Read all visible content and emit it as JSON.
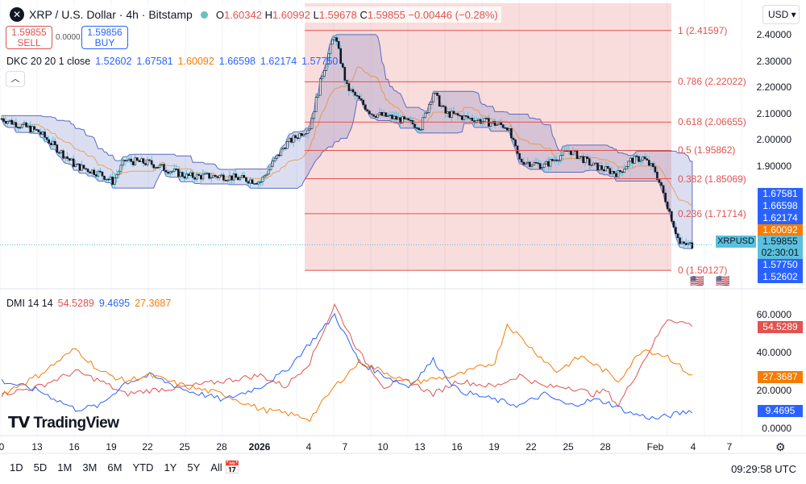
{
  "header": {
    "title": "XRP / U.S. Dollar · 4h · Bitstamp",
    "open_label": "O",
    "open": "1.60342",
    "high_label": "H",
    "high": "1.60992",
    "low_label": "L",
    "low": "1.59678",
    "close_label": "C",
    "close": "1.59855",
    "change": "−0.00446 (−0.28%)"
  },
  "trade": {
    "sell_price": "1.59855",
    "sell_label": "SELL",
    "spread": "0.00001",
    "buy_price": "1.59856",
    "buy_label": "BUY"
  },
  "currency": "USD",
  "dkc": {
    "name": "DKC 20 20 1 close",
    "v1": "1.52602",
    "v2": "1.67581",
    "v3": "1.60092",
    "v4": "1.66598",
    "v5": "1.62174",
    "v6": "1.57750"
  },
  "dmi": {
    "name": "DMI 14 14",
    "minus_di": "54.5289",
    "plus_di": "9.4695",
    "adx": "27.3687"
  },
  "price_axis": [
    "2.40000",
    "2.30000",
    "2.20000",
    "2.10000",
    "2.00000",
    "1.90000"
  ],
  "price_labels": {
    "l1": "1.67581",
    "l2": "1.66598",
    "l3": "1.62174",
    "mid": "1.60092",
    "symbol": "XRPUSD",
    "last": "1.59855",
    "countdown": "02:30:01",
    "l4": "1.57750",
    "l5": "1.52602"
  },
  "fib": [
    {
      "label": "1 (2.41597)",
      "p": 2.41597
    },
    {
      "label": "0.786 (2.22022)",
      "p": 2.22022
    },
    {
      "label": "0.618 (2.06655)",
      "p": 2.06655
    },
    {
      "label": "0.5 (1.95862)",
      "p": 1.95862
    },
    {
      "label": "0.382 (1.85069)",
      "p": 1.85069
    },
    {
      "label": "0.236 (1.71714)",
      "p": 1.71714
    },
    {
      "label": "0 (1.50127)",
      "p": 1.50127
    }
  ],
  "dmi_axis": [
    "60.0000",
    "40.0000",
    "20.0000",
    "0.0000"
  ],
  "dmi_labels": {
    "minus_di": "54.5289",
    "adx": "27.3687",
    "plus_di": "9.4695"
  },
  "x_ticks": [
    "0",
    "13",
    "16",
    "19",
    "22",
    "25",
    "28",
    "2026",
    "4",
    "7",
    "10",
    "13",
    "16",
    "19",
    "22",
    "25",
    "28",
    "Feb",
    "4",
    "7"
  ],
  "brand": "TradingView",
  "ranges": [
    "1D",
    "5D",
    "1M",
    "3M",
    "6M",
    "YTD",
    "1Y",
    "5Y",
    "All"
  ],
  "clock": "09:29:58 UTC",
  "colors": {
    "up": "#131722",
    "down": "#131722",
    "wick": "#5bc0de",
    "band": "#5c6bc0",
    "fib": "#e0534f",
    "plus_di": "#2962ff",
    "minus_di": "#e0534f",
    "adx": "#f57c00",
    "accent": "#2962ff"
  },
  "chart_data": {
    "type": "line",
    "price_close": {
      "days": [
        0,
        3,
        6,
        8,
        9,
        10,
        12,
        15,
        18,
        21,
        23,
        25,
        26,
        27,
        28,
        30,
        32,
        34,
        35,
        36,
        38,
        41,
        42,
        44,
        46,
        47,
        48,
        50,
        51,
        52,
        53,
        54,
        55,
        56
      ],
      "values": [
        2.08,
        2.03,
        1.9,
        1.87,
        1.84,
        1.92,
        1.91,
        1.86,
        1.86,
        1.84,
        1.98,
        2.05,
        2.25,
        2.4,
        2.2,
        2.1,
        2.08,
        2.05,
        2.18,
        2.1,
        2.08,
        2.05,
        1.92,
        1.9,
        1.96,
        1.93,
        1.9,
        1.87,
        1.92,
        1.93,
        1.88,
        1.75,
        1.6,
        1.59855
      ]
    },
    "dmi": [
      {
        "name": "-DI",
        "days": [
          0,
          3,
          6,
          8,
          10,
          12,
          15,
          18,
          21,
          23,
          25,
          27,
          29,
          31,
          33,
          35,
          37,
          40,
          42,
          44,
          46,
          48,
          49,
          50,
          52,
          54,
          56
        ],
        "values": [
          18,
          22,
          30,
          25,
          18,
          20,
          22,
          25,
          28,
          22,
          35,
          65,
          40,
          22,
          25,
          18,
          25,
          22,
          28,
          22,
          22,
          18,
          20,
          12,
          35,
          58,
          54.5289
        ]
      },
      {
        "name": "+DI",
        "days": [
          0,
          3,
          6,
          8,
          10,
          12,
          15,
          18,
          21,
          23,
          25,
          26,
          27,
          29,
          31,
          33,
          35,
          37,
          40,
          42,
          44,
          46,
          48,
          49,
          51,
          53,
          55,
          56
        ],
        "values": [
          25,
          20,
          10,
          12,
          24,
          28,
          20,
          15,
          22,
          30,
          45,
          52,
          60,
          35,
          28,
          22,
          36,
          20,
          15,
          12,
          18,
          12,
          15,
          14,
          8,
          5,
          8,
          9.4695
        ]
      },
      {
        "name": "ADX",
        "days": [
          0,
          3,
          6,
          8,
          10,
          12,
          15,
          18,
          21,
          23,
          25,
          27,
          29,
          31,
          33,
          35,
          37,
          40,
          41,
          43,
          45,
          47,
          49,
          50,
          52,
          54,
          56
        ],
        "values": [
          18,
          28,
          42,
          30,
          25,
          28,
          22,
          18,
          10,
          8,
          5,
          22,
          35,
          30,
          24,
          26,
          28,
          35,
          55,
          42,
          30,
          38,
          30,
          25,
          42,
          38,
          27.3687
        ]
      }
    ],
    "price_range": [
      1.45,
      2.43
    ],
    "dmi_range": [
      0,
      70
    ]
  }
}
